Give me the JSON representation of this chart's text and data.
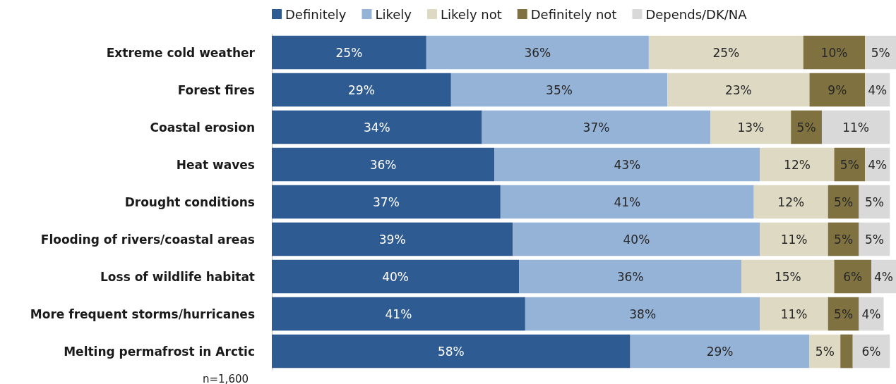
{
  "chart_data": {
    "type": "bar",
    "orientation": "horizontal",
    "stacked": true,
    "legend": "top",
    "xlim": [
      0,
      101
    ],
    "tick_labels": "y",
    "grid": false,
    "categories": [
      "Extreme cold weather",
      "Forest fires",
      "Coastal erosion",
      "Heat waves",
      "Drought conditions",
      "Flooding of rivers/coastal areas",
      "Loss of wildlife habitat",
      "More frequent storms/hurricanes",
      "Melting permafrost in Arctic"
    ],
    "series": [
      {
        "name": "Definitely",
        "color": "#2f5b93",
        "values": [
          25,
          29,
          34,
          36,
          37,
          39,
          40,
          41,
          58
        ],
        "value_labels": [
          "25%",
          "29%",
          "34%",
          "36%",
          "37%",
          "39%",
          "40%",
          "41%",
          "58%"
        ]
      },
      {
        "name": "Likely",
        "color": "#95b3d7",
        "values": [
          36,
          35,
          37,
          43,
          41,
          40,
          36,
          38,
          29
        ],
        "value_labels": [
          "36%",
          "35%",
          "37%",
          "43%",
          "41%",
          "40%",
          "36%",
          "38%",
          "29%"
        ]
      },
      {
        "name": "Likely not",
        "color": "#ddd9c3",
        "values": [
          25,
          23,
          13,
          12,
          12,
          11,
          15,
          11,
          5
        ],
        "value_labels": [
          "25%",
          "23%",
          "13%",
          "12%",
          "12%",
          "11%",
          "15%",
          "11%",
          "5%"
        ]
      },
      {
        "name": "Definitely not",
        "color": "#7f7240",
        "values": [
          10,
          9,
          5,
          5,
          5,
          5,
          6,
          5,
          2
        ],
        "value_labels": [
          "10%",
          "9%",
          "5%",
          "5%",
          "5%",
          "5%",
          "6%",
          "5%",
          null
        ]
      },
      {
        "name": "Depends/DK/NA",
        "color": "#d9d9d9",
        "values": [
          5,
          4,
          11,
          4,
          5,
          5,
          4,
          4,
          6
        ],
        "value_labels": [
          "5%",
          "4%",
          "11%",
          "4%",
          "5%",
          "5%",
          "4%",
          "4%",
          "6%"
        ]
      }
    ],
    "annotations": [
      "n=1,600"
    ]
  }
}
